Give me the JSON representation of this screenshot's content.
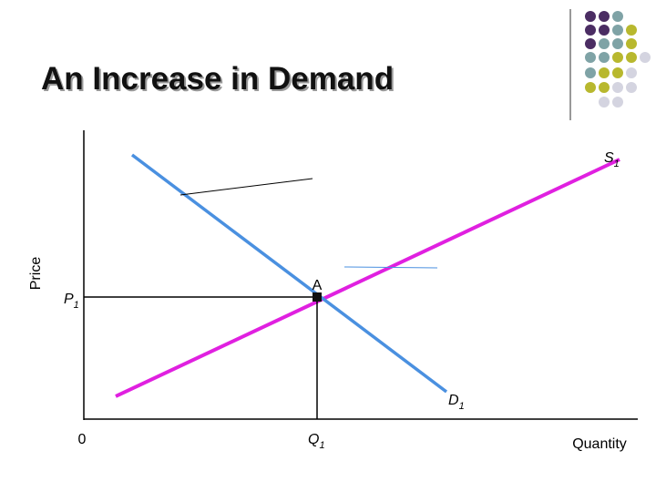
{
  "header": {
    "title": "An Increase in Demand"
  },
  "axes": {
    "y_label": "Price",
    "x_label": "Quantity",
    "origin": "0"
  },
  "curves": {
    "supply": {
      "main": "S",
      "sub": "1"
    },
    "demand": {
      "main": "D",
      "sub": "1"
    }
  },
  "equilibrium": {
    "point": "A",
    "price": {
      "main": "P",
      "sub": "1"
    },
    "quantity": {
      "main": "Q",
      "sub": "1"
    }
  }
}
